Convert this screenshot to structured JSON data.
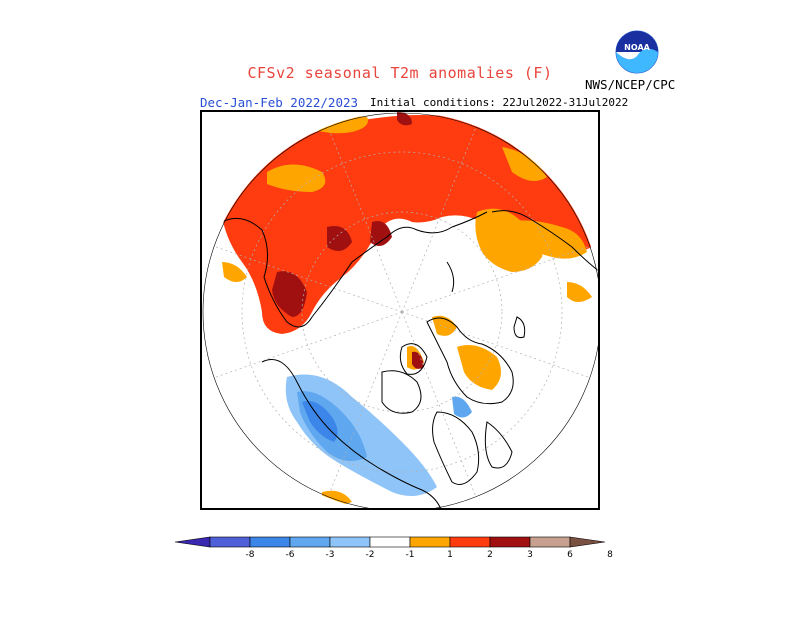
{
  "header": {
    "title": "CFSv2 seasonal T2m anomalies (F)",
    "period": "Dec-Jan-Feb 2022/2023",
    "initial_conditions": "Initial conditions: 22Jul2022-31Jul2022",
    "agency": "NWS/NCEP/CPC",
    "logo_text": "NOAA"
  },
  "legend": {
    "ticks": [
      "-8",
      "-6",
      "-3",
      "-2",
      "-1",
      "1",
      "2",
      "3",
      "6",
      "8"
    ],
    "colors": [
      "#3b28b0",
      "#4f5fd8",
      "#3b86e8",
      "#5fa8f0",
      "#8fc4f8",
      "#ffffff",
      "#ffa500",
      "#ff3b10",
      "#a01010",
      "#c8a090",
      "#7a5040"
    ]
  },
  "colors": {
    "title": "#e8453c",
    "period": "#2a4fd6",
    "anomaly_1_2": "#ffa500",
    "anomaly_2_3": "#ff3b10",
    "anomaly_3_6": "#a01010",
    "anomaly_neg_1_2": "#8fc4f8",
    "anomaly_neg_2_3": "#5fa8f0",
    "anomaly_neg_3_6": "#3b86e8"
  }
}
